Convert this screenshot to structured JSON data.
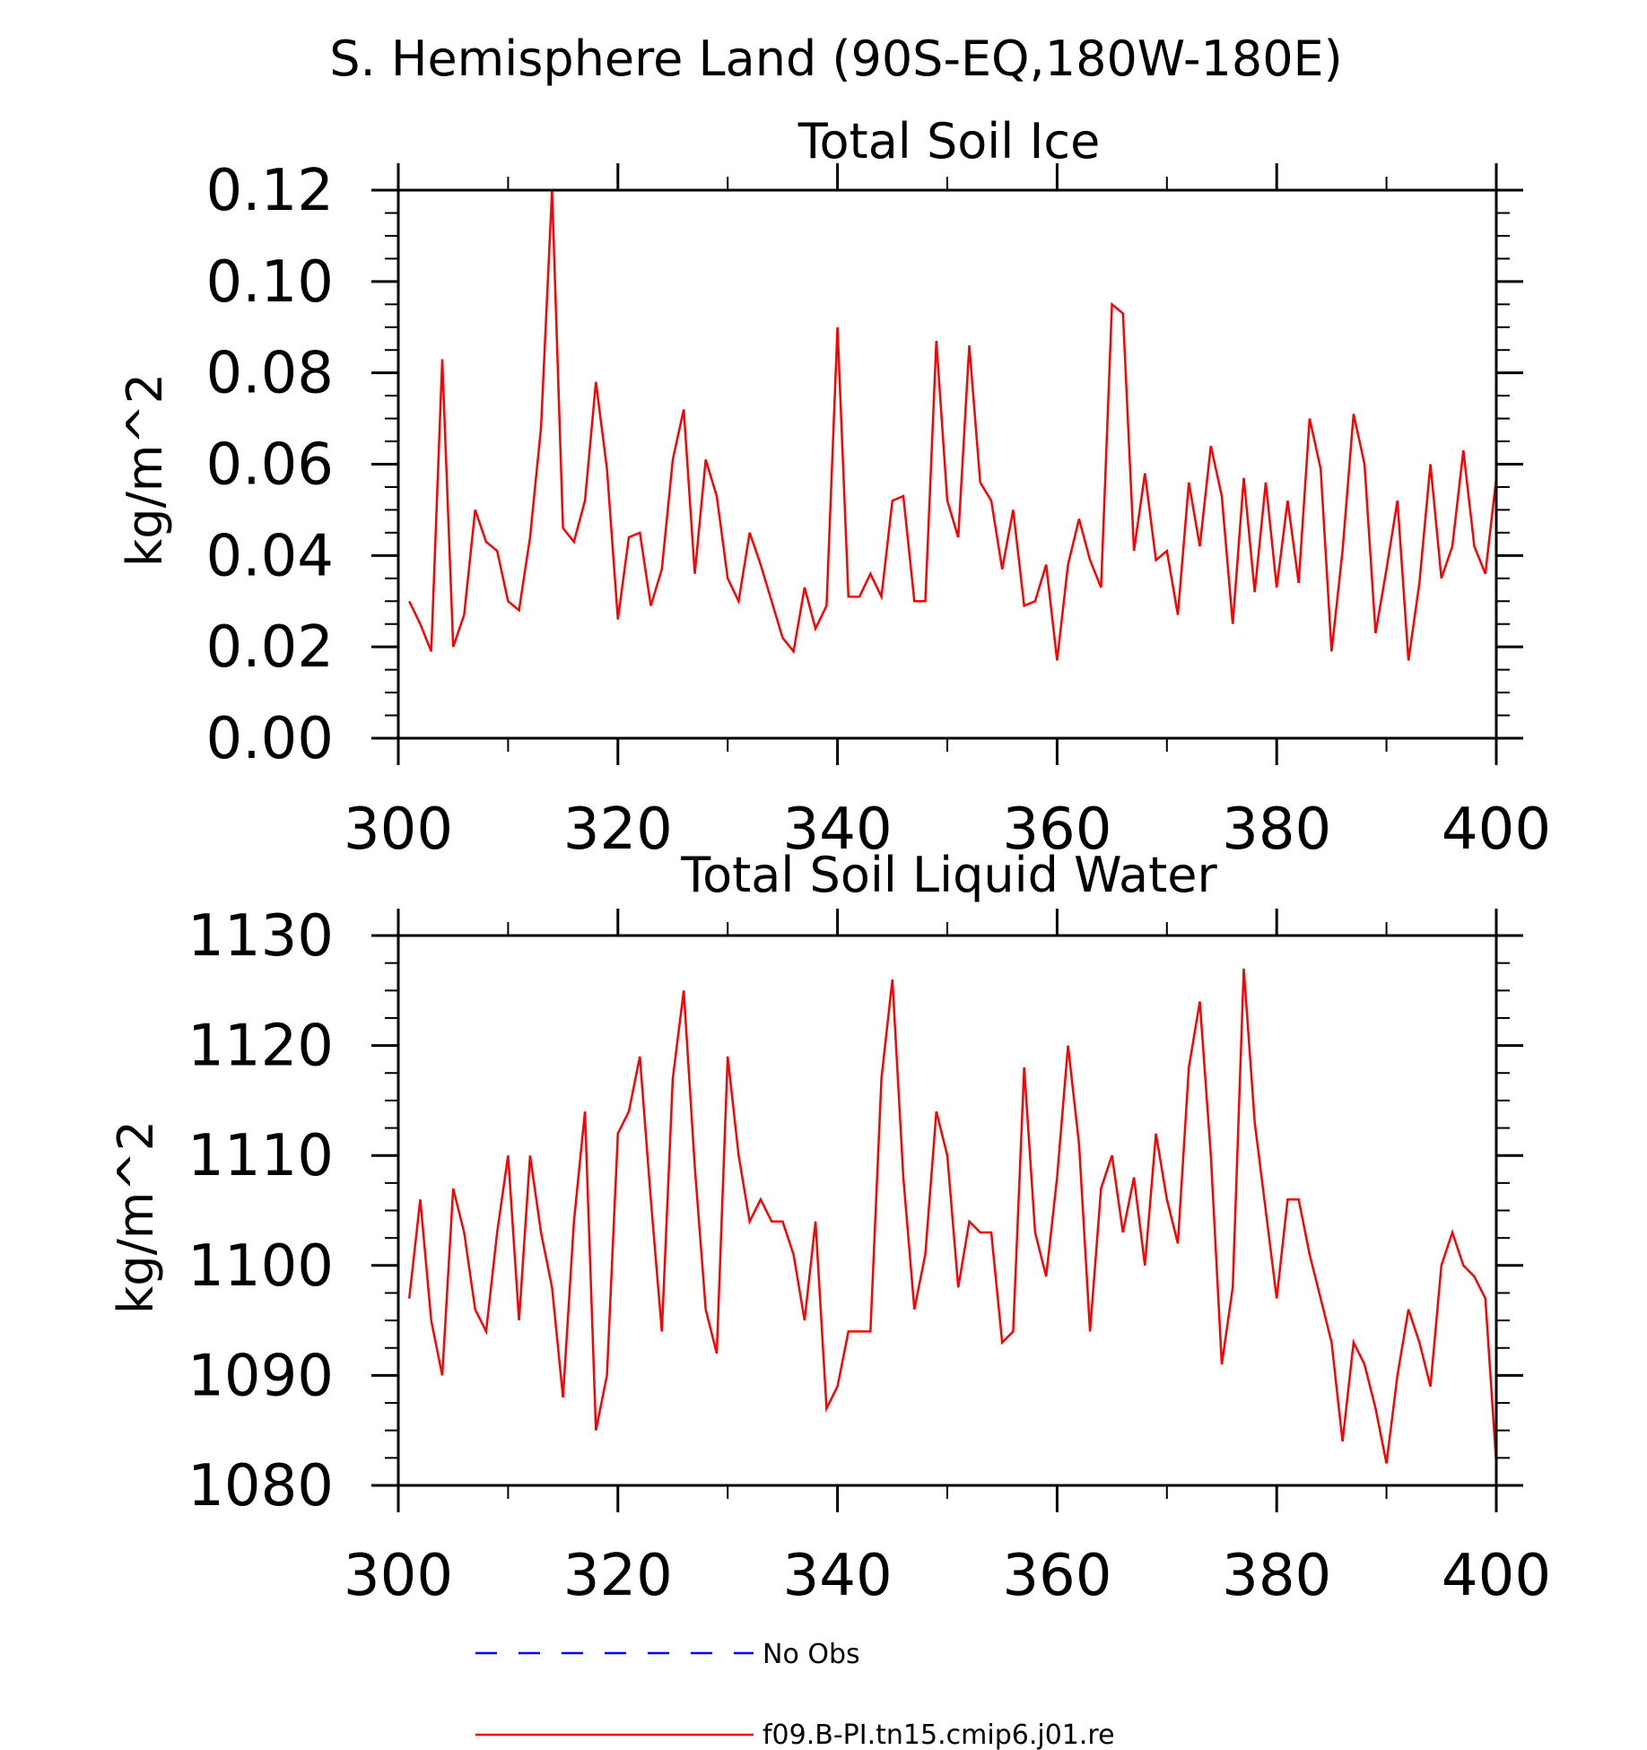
{
  "figure": {
    "title": "S. Hemisphere Land (90S-EQ,180W-180E)"
  },
  "legend": {
    "entries": [
      {
        "label": "No Obs",
        "color": "#0000ff",
        "style": "dashed"
      },
      {
        "label": "f09.B-PI.tn15.cmip6.j01.re",
        "color": "#ff0000",
        "style": "solid"
      }
    ]
  },
  "chart_data": [
    {
      "type": "line",
      "title": "Total Soil Ice",
      "ylabel": "kg/m^2",
      "xlabel": "",
      "xlim": [
        300,
        400
      ],
      "ylim": [
        0.0,
        0.12
      ],
      "x_ticks": [
        "300",
        "320",
        "340",
        "360",
        "380",
        "400"
      ],
      "y_ticks": [
        "0.00",
        "0.02",
        "0.04",
        "0.06",
        "0.08",
        "0.10",
        "0.12"
      ],
      "grid": false,
      "series": [
        {
          "name": "f09.B-PI.tn15.cmip6.j01.re",
          "color": "#ff0000",
          "x_start": 301,
          "x_step": 1,
          "values": [
            0.03,
            0.025,
            0.019,
            0.083,
            0.02,
            0.027,
            0.05,
            0.043,
            0.041,
            0.03,
            0.028,
            0.044,
            0.068,
            0.121,
            0.046,
            0.043,
            0.052,
            0.078,
            0.059,
            0.026,
            0.044,
            0.045,
            0.029,
            0.037,
            0.061,
            0.072,
            0.036,
            0.061,
            0.053,
            0.035,
            0.03,
            0.045,
            0.038,
            0.03,
            0.022,
            0.019,
            0.033,
            0.024,
            0.029,
            0.09,
            0.031,
            0.031,
            0.036,
            0.031,
            0.052,
            0.053,
            0.03,
            0.03,
            0.087,
            0.052,
            0.044,
            0.086,
            0.056,
            0.052,
            0.037,
            0.05,
            0.029,
            0.03,
            0.038,
            0.017,
            0.038,
            0.048,
            0.039,
            0.033,
            0.095,
            0.093,
            0.041,
            0.058,
            0.039,
            0.041,
            0.027,
            0.056,
            0.042,
            0.064,
            0.053,
            0.025,
            0.057,
            0.032,
            0.056,
            0.033,
            0.052,
            0.034,
            0.07,
            0.059,
            0.019,
            0.041,
            0.071,
            0.06,
            0.023,
            0.037,
            0.052,
            0.017,
            0.034,
            0.06,
            0.035,
            0.042,
            0.063,
            0.042,
            0.036,
            0.057
          ]
        }
      ]
    },
    {
      "type": "line",
      "title": "Total Soil Liquid Water",
      "ylabel": "kg/m^2",
      "xlabel": "",
      "xlim": [
        300,
        400
      ],
      "ylim": [
        1080,
        1130
      ],
      "x_ticks": [
        "300",
        "320",
        "340",
        "360",
        "380",
        "400"
      ],
      "y_ticks": [
        "1080",
        "1090",
        "1100",
        "1110",
        "1120",
        "1130"
      ],
      "grid": false,
      "series": [
        {
          "name": "f09.B-PI.tn15.cmip6.j01.re",
          "color": "#ff0000",
          "x_start": 301,
          "x_step": 1,
          "values": [
            1097,
            1106,
            1095,
            1090,
            1107,
            1103,
            1096,
            1094,
            1103,
            1110,
            1095,
            1110,
            1103,
            1098,
            1088,
            1104,
            1114,
            1085,
            1090,
            1112,
            1114,
            1119,
            1106,
            1094,
            1117,
            1125,
            1109,
            1096,
            1092,
            1119,
            1110,
            1104,
            1106,
            1104,
            1104,
            1101,
            1095,
            1104,
            1087,
            1089,
            1094,
            1094,
            1094,
            1117,
            1126,
            1108,
            1096,
            1101,
            1114,
            1110,
            1098,
            1104,
            1103,
            1103,
            1093,
            1094,
            1118,
            1103,
            1099,
            1108,
            1120,
            1111,
            1094,
            1107,
            1110,
            1103,
            1108,
            1100,
            1112,
            1106,
            1102,
            1118,
            1124,
            1110,
            1091,
            1098,
            1127,
            1113,
            1105,
            1097,
            1106,
            1106,
            1101,
            1097,
            1093,
            1084,
            1093,
            1091,
            1087,
            1082,
            1090,
            1096,
            1093,
            1089,
            1100,
            1103,
            1100,
            1099,
            1097,
            1082
          ]
        }
      ]
    }
  ]
}
